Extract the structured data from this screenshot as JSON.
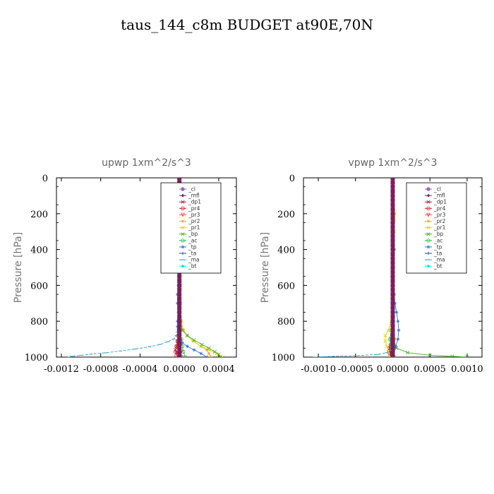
{
  "title": "taus_144_c8m  BUDGET at90E,70N",
  "colors": {
    "_cl": "#8c6fb3",
    "_mfl": "#7a1f5c",
    "_dp1": "#b01030",
    "_pr4": "#d81b2a",
    "_pr3": "#ff4060",
    "_pr2": "#ffa030",
    "_pr1": "#f0d000",
    "_bp": "#40b020",
    "_ac": "#20c040",
    "_tp": "#3070e0",
    "_ta": "#2040c0",
    "_ma": "#30a0d0",
    "_bt": "#00e0e0"
  },
  "chart_data": [
    {
      "type": "line",
      "title": "upwp   1xm^2/s^3",
      "ylabel": "Pressure [hPa]",
      "xlim": [
        -0.00125,
        0.00058
      ],
      "ylim": [
        1000,
        0
      ],
      "xticks": [
        -0.0012,
        -0.0008,
        -0.0004,
        0.0,
        0.0004
      ],
      "xtick_labels": [
        "-0.0012",
        "-0.0008",
        "-0.0004",
        "0.0000",
        "0.0004"
      ],
      "yticks": [
        0,
        200,
        400,
        600,
        800,
        1000
      ],
      "ytick_labels": [
        "0",
        "200",
        "400",
        "600",
        "800",
        "1000"
      ],
      "legend_position": "top-right",
      "series": [
        {
          "name": "_cl",
          "x": [
            0,
            0,
            0,
            0,
            0,
            0,
            0,
            0,
            0,
            0,
            0,
            0,
            0,
            0,
            0,
            0,
            0,
            0,
            0,
            0,
            0,
            0,
            0,
            0,
            0,
            0,
            0,
            0,
            0,
            0,
            0,
            0,
            0,
            0,
            0,
            0,
            0,
            0,
            0,
            0,
            0
          ],
          "y": [
            0,
            25,
            50,
            75,
            100,
            125,
            150,
            175,
            200,
            225,
            250,
            275,
            300,
            325,
            350,
            375,
            400,
            425,
            450,
            475,
            500,
            525,
            550,
            575,
            600,
            625,
            650,
            675,
            700,
            725,
            750,
            775,
            800,
            825,
            850,
            875,
            900,
            925,
            950,
            975,
            1000
          ]
        },
        {
          "name": "_mfl",
          "x": [
            0,
            0,
            0,
            0,
            0,
            0,
            0,
            0,
            0,
            0,
            0,
            0,
            0,
            0,
            0,
            0,
            0,
            0,
            0,
            0,
            0,
            0,
            0,
            0,
            0,
            0,
            0,
            0,
            0,
            0,
            0,
            0,
            0,
            0,
            0,
            0,
            0,
            0,
            0,
            0,
            0
          ],
          "y": [
            0,
            25,
            50,
            75,
            100,
            125,
            150,
            175,
            200,
            225,
            250,
            275,
            300,
            325,
            350,
            375,
            400,
            425,
            450,
            475,
            500,
            525,
            550,
            575,
            600,
            625,
            650,
            675,
            700,
            725,
            750,
            775,
            800,
            825,
            850,
            875,
            900,
            925,
            950,
            975,
            1000
          ]
        },
        {
          "name": "_dp1",
          "x": [
            0,
            0,
            0,
            0,
            0,
            0,
            0,
            0,
            0,
            -5e-06,
            -1e-05,
            -2e-05,
            -3e-05,
            -4e-05,
            -2e-05,
            1e-05
          ],
          "y": [
            0,
            100,
            200,
            300,
            400,
            500,
            600,
            700,
            800,
            850,
            880,
            910,
            940,
            960,
            980,
            1000
          ]
        },
        {
          "name": "_pr4",
          "x": [
            0,
            0,
            0,
            0,
            0,
            0,
            -5e-06,
            -1e-05,
            -2e-05,
            -3e-05,
            -4e-05,
            -3e-05,
            -1e-05
          ],
          "y": [
            0,
            200,
            400,
            600,
            700,
            800,
            850,
            880,
            910,
            940,
            970,
            990,
            1000
          ]
        },
        {
          "name": "_pr3",
          "x": [
            0,
            0,
            0,
            0,
            0,
            0,
            5e-06,
            1e-05,
            1e-05,
            2e-05,
            2e-05
          ],
          "y": [
            0,
            200,
            400,
            600,
            800,
            850,
            880,
            910,
            940,
            970,
            1000
          ]
        },
        {
          "name": "_pr2",
          "x": [
            0,
            0,
            0,
            0,
            1e-05,
            2e-05,
            4e-05,
            8e-05,
            0.00014,
            0.00022,
            0.00028,
            0.0003,
            0.00032
          ],
          "y": [
            0,
            200,
            400,
            600,
            700,
            800,
            850,
            880,
            910,
            940,
            960,
            980,
            1000
          ]
        },
        {
          "name": "_pr1",
          "x": [
            0,
            0,
            5e-06,
            1e-05,
            1e-05,
            2e-05,
            4e-05,
            8e-05,
            0.00014,
            0.00022,
            0.0003,
            0.00038,
            0.00044
          ],
          "y": [
            0,
            200,
            400,
            600,
            700,
            800,
            850,
            880,
            910,
            940,
            960,
            980,
            1000
          ]
        },
        {
          "name": "_bp",
          "x": [
            0,
            0,
            0,
            1e-05,
            3e-05,
            8e-05,
            0.00015,
            0.00023,
            0.0003,
            0.00036,
            0.0004,
            0.00042
          ],
          "y": [
            0,
            400,
            700,
            800,
            850,
            880,
            905,
            930,
            950,
            970,
            985,
            1000
          ]
        },
        {
          "name": "_ac",
          "x": [
            0,
            0,
            0,
            5e-06,
            1e-05,
            2e-05,
            3e-05,
            4e-05,
            6e-05
          ],
          "y": [
            0,
            400,
            700,
            800,
            850,
            900,
            940,
            970,
            1000
          ]
        },
        {
          "name": "_tp",
          "x": [
            0,
            0,
            -1e-05,
            -2e-05,
            -2e-05,
            -1e-05,
            -2e-05,
            -2e-05,
            -1e-05,
            0,
            1e-05,
            3e-05,
            8e-05,
            0.00015,
            0.00022,
            0.00028
          ],
          "y": [
            0,
            500,
            600,
            650,
            700,
            750,
            800,
            830,
            860,
            880,
            900,
            920,
            940,
            960,
            980,
            1000
          ]
        },
        {
          "name": "_ta",
          "x": [
            0,
            0,
            0,
            -5e-06,
            -1e-05,
            -5e-06,
            0,
            1e-05,
            2e-05
          ],
          "y": [
            0,
            400,
            700,
            800,
            850,
            900,
            940,
            970,
            1000
          ]
        },
        {
          "name": "_ma",
          "x": [
            0,
            0,
            -5e-06,
            -1e-05,
            -2e-05,
            -3e-05,
            -6e-05,
            -0.00012,
            -0.0002,
            -0.0003,
            -0.00045,
            -0.0006,
            -0.00075,
            -0.0009,
            -0.001,
            -0.0011,
            -0.00112
          ],
          "y": [
            0,
            700,
            800,
            840,
            860,
            880,
            900,
            915,
            930,
            942,
            955,
            966,
            976,
            984,
            990,
            996,
            1000
          ]
        },
        {
          "name": "_bt",
          "x": [
            0,
            0,
            0,
            0,
            0,
            0
          ],
          "y": [
            0,
            200,
            400,
            600,
            800,
            1000
          ]
        }
      ]
    },
    {
      "type": "line",
      "title": "vpwp   1xm^2/s^3",
      "ylabel": "Pressure [hPa]",
      "xlim": [
        -0.0012,
        0.0012
      ],
      "ylim": [
        1000,
        0
      ],
      "xticks": [
        -0.001,
        -0.0005,
        0.0,
        0.0005,
        0.001
      ],
      "xtick_labels": [
        "-0.0010",
        "-0.0005",
        "0.0000",
        "0.0005",
        "0.0010"
      ],
      "yticks": [
        0,
        200,
        400,
        600,
        800,
        1000
      ],
      "ytick_labels": [
        "0",
        "200",
        "400",
        "600",
        "800",
        "1000"
      ],
      "legend_position": "top-right",
      "series": [
        {
          "name": "_cl",
          "x": [
            0,
            0,
            0,
            0,
            0,
            0,
            0,
            0,
            0,
            0,
            0,
            0,
            0,
            0,
            0,
            0,
            0,
            0,
            0,
            0,
            0,
            0,
            0,
            0,
            0,
            0,
            0,
            0,
            0,
            0,
            0,
            0,
            0,
            0,
            0,
            0,
            0,
            0,
            0,
            0,
            0
          ],
          "y": [
            0,
            25,
            50,
            75,
            100,
            125,
            150,
            175,
            200,
            225,
            250,
            275,
            300,
            325,
            350,
            375,
            400,
            425,
            450,
            475,
            500,
            525,
            550,
            575,
            600,
            625,
            650,
            675,
            700,
            725,
            750,
            775,
            800,
            825,
            850,
            875,
            900,
            925,
            950,
            975,
            1000
          ]
        },
        {
          "name": "_mfl",
          "x": [
            0,
            0,
            0,
            0,
            0,
            0,
            0,
            0,
            0,
            0,
            0,
            0,
            0,
            0,
            0,
            0,
            0,
            0,
            0,
            0,
            0,
            0,
            0,
            0,
            0,
            0,
            0,
            0,
            0,
            0,
            0,
            0,
            0,
            0,
            0,
            0,
            0,
            0,
            0,
            0,
            0
          ],
          "y": [
            0,
            25,
            50,
            75,
            100,
            125,
            150,
            175,
            200,
            225,
            250,
            275,
            300,
            325,
            350,
            375,
            400,
            425,
            450,
            475,
            500,
            525,
            550,
            575,
            600,
            625,
            650,
            675,
            700,
            725,
            750,
            775,
            800,
            825,
            850,
            875,
            900,
            925,
            950,
            975,
            1000
          ]
        },
        {
          "name": "_dp1",
          "x": [
            0,
            0,
            0,
            0,
            0,
            -2e-05,
            -4e-05,
            -3e-05,
            -1e-05
          ],
          "y": [
            0,
            200,
            400,
            600,
            800,
            900,
            950,
            980,
            1000
          ]
        },
        {
          "name": "_pr4",
          "x": [
            0,
            0,
            0,
            0,
            0,
            -2e-05,
            -5e-05,
            -4e-05,
            -2e-05
          ],
          "y": [
            0,
            200,
            400,
            600,
            800,
            900,
            950,
            980,
            1000
          ]
        },
        {
          "name": "_pr3",
          "x": [
            0,
            0,
            0,
            0,
            0,
            1e-05,
            2e-05,
            1e-05
          ],
          "y": [
            0,
            200,
            400,
            600,
            800,
            900,
            960,
            1000
          ]
        },
        {
          "name": "_pr2",
          "x": [
            0,
            2e-05,
            2e-05,
            1e-05,
            0,
            1e-05,
            3e-05,
            2e-05
          ],
          "y": [
            0,
            200,
            240,
            300,
            500,
            800,
            900,
            1000
          ]
        },
        {
          "name": "_pr1",
          "x": [
            0,
            3e-05,
            2e-05,
            0,
            -2e-05,
            -6e-05,
            -0.0001,
            -0.0001,
            -8e-05,
            -6e-05,
            -4e-05
          ],
          "y": [
            0,
            200,
            300,
            600,
            800,
            850,
            880,
            910,
            940,
            970,
            1000
          ]
        },
        {
          "name": "_bp",
          "x": [
            0,
            0,
            0,
            1e-05,
            5e-05,
            0.0002,
            0.0005,
            0.0008,
            0.001
          ],
          "y": [
            0,
            400,
            800,
            900,
            950,
            975,
            990,
            996,
            1000
          ]
        },
        {
          "name": "_ac",
          "x": [
            0,
            0,
            0,
            -2e-05,
            -4e-05,
            -3e-05,
            -1e-05,
            0,
            2e-05
          ],
          "y": [
            0,
            400,
            800,
            850,
            900,
            930,
            960,
            980,
            1000
          ]
        },
        {
          "name": "_tp",
          "x": [
            0,
            1e-05,
            2e-05,
            1e-05,
            2e-05,
            3e-05,
            5e-05,
            7e-05,
            8e-05,
            7e-05,
            4e-05,
            1e-05,
            -1e-05
          ],
          "y": [
            0,
            200,
            400,
            600,
            650,
            700,
            750,
            800,
            850,
            900,
            940,
            970,
            1000
          ]
        },
        {
          "name": "_ta",
          "x": [
            0,
            0,
            0,
            0,
            -1e-05,
            0,
            1e-05
          ],
          "y": [
            0,
            400,
            800,
            900,
            950,
            980,
            1000
          ]
        },
        {
          "name": "_ma",
          "x": [
            0,
            0,
            0,
            -1e-05,
            -3e-05,
            -8e-05,
            -0.0002,
            -0.0005,
            -0.0008,
            -0.00105
          ],
          "y": [
            0,
            400,
            800,
            900,
            950,
            975,
            985,
            992,
            996,
            1000
          ]
        },
        {
          "name": "_bt",
          "x": [
            0,
            0,
            0,
            0,
            0,
            0
          ],
          "y": [
            0,
            200,
            400,
            600,
            800,
            1000
          ]
        }
      ]
    }
  ]
}
